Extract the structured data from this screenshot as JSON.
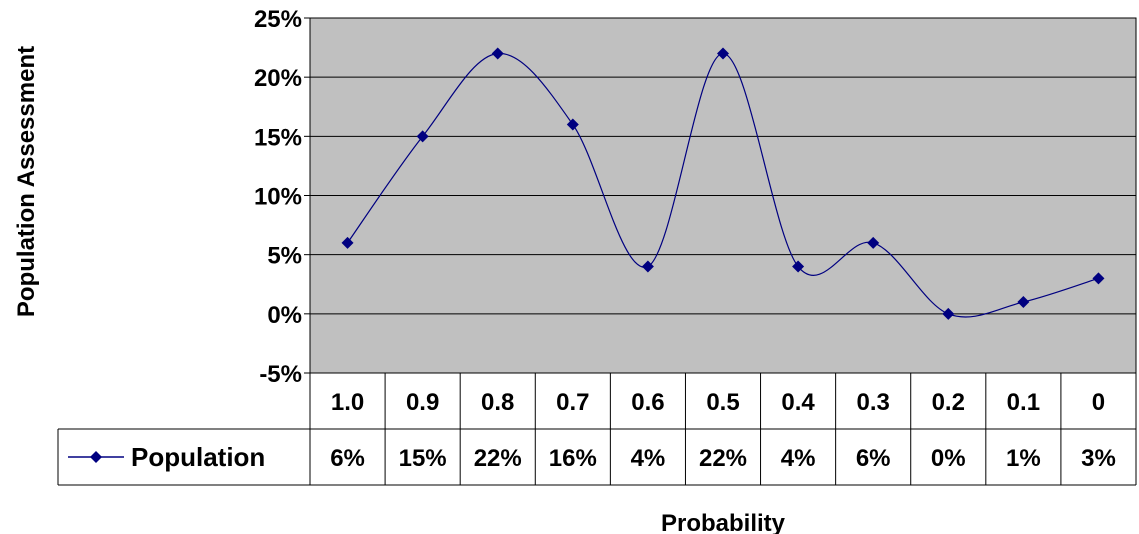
{
  "chart_data": {
    "type": "line",
    "title": "",
    "xlabel": "Probability",
    "ylabel": "Population Assessment",
    "categories": [
      "1.0",
      "0.9",
      "0.8",
      "0.7",
      "0.6",
      "0.5",
      "0.4",
      "0.3",
      "0.2",
      "0.1",
      "0"
    ],
    "series": [
      {
        "name": "Population",
        "values": [
          6,
          15,
          22,
          16,
          4,
          22,
          4,
          6,
          0,
          1,
          3
        ],
        "value_labels": [
          "6%",
          "15%",
          "22%",
          "16%",
          "4%",
          "22%",
          "4%",
          "6%",
          "0%",
          "1%",
          "3%"
        ],
        "color": "#000080",
        "marker": "diamond",
        "smooth": true
      }
    ],
    "ylim": [
      -5,
      25
    ],
    "yticks": [
      25,
      20,
      15,
      10,
      5,
      0,
      -5
    ],
    "ytick_labels": [
      "25%",
      "20%",
      "15%",
      "10%",
      "5%",
      "0%",
      "-5%"
    ],
    "grid": true,
    "plot_background": "#c0c0c0",
    "data_table": true
  }
}
